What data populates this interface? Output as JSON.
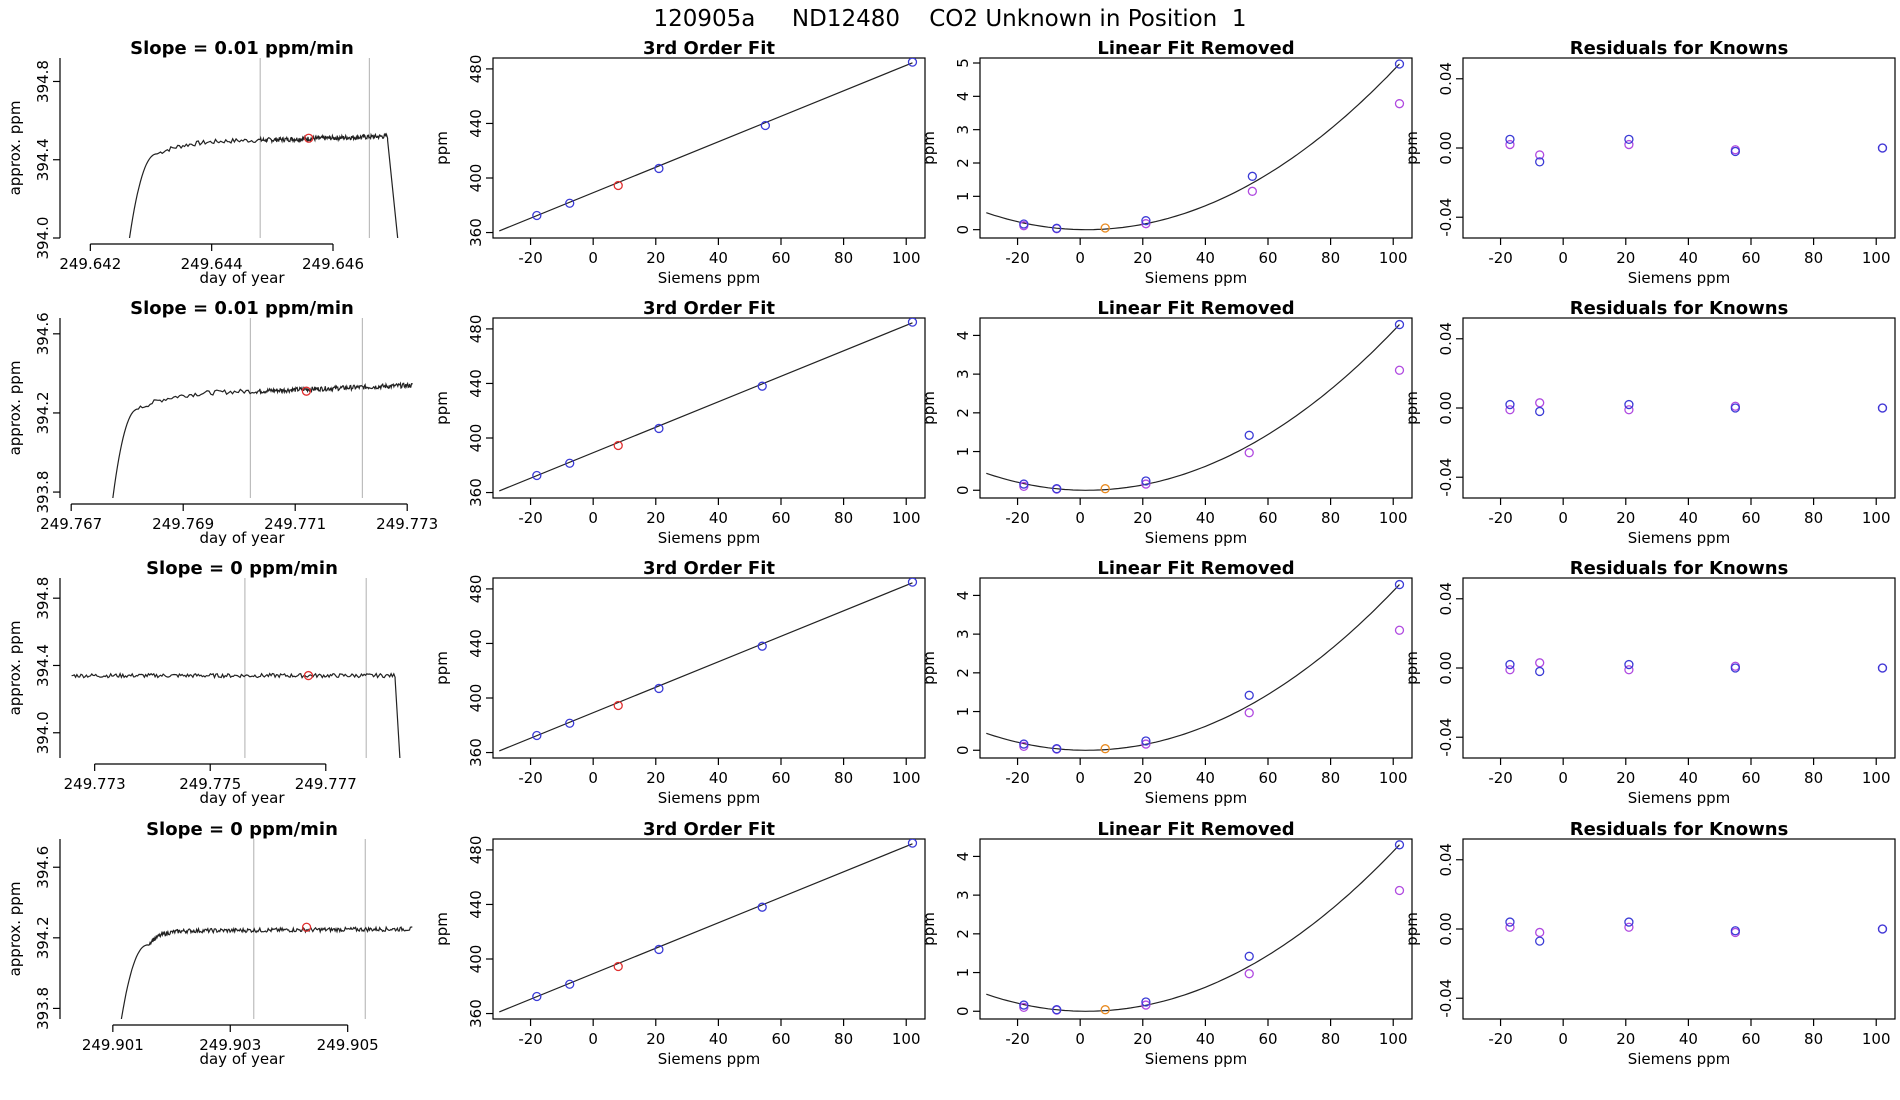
{
  "suptitle": "120905a     ND12480    CO2 Unknown in Position  1",
  "colors": {
    "known": "#3b3bd6",
    "known_alt": "#b04ae0",
    "unknown": "#e03030",
    "unknown_alt": "#e88a20",
    "vline": "#bdbdbd",
    "line": "#222222"
  },
  "chart_data": [
    {
      "row": 1,
      "panel": "timeseries",
      "type": "line",
      "title": "Slope =  0.01  ppm/min",
      "xlabel": "day of year",
      "ylabel": "approx. ppm",
      "xlim": [
        249.6415,
        249.6475
      ],
      "ylim": [
        394.0,
        394.92
      ],
      "xticks": [
        249.642,
        249.644,
        249.646
      ],
      "xtick_labels": [
        "249.642",
        "249.644",
        "249.646"
      ],
      "yticks": [
        394.0,
        394.4,
        394.8
      ],
      "ytick_labels": [
        "394.0",
        "394.4",
        "394.8"
      ],
      "rise": {
        "start_x": 249.6426,
        "end_x": 249.6431,
        "plateau_y": 394.43,
        "plateau_end_x": 249.6448,
        "plateau_end_y": 394.5
      },
      "level_end_x": 249.6469,
      "level_y": 394.52,
      "drop": {
        "start_x": 249.6469,
        "end_x": 249.6471
      },
      "noise": 0.012,
      "vlines": [
        249.6448,
        249.6466
      ],
      "marker": {
        "x": 249.6456,
        "y": 394.51
      }
    },
    {
      "row": 1,
      "panel": "fit",
      "type": "scatter",
      "title": "3rd Order Fit",
      "xlabel": "Siemens ppm",
      "ylabel": "ppm",
      "xlim": [
        -32,
        106
      ],
      "ylim": [
        356,
        488
      ],
      "xticks": [
        -20,
        0,
        20,
        40,
        60,
        80,
        100
      ],
      "xtick_labels": [
        "-20",
        "0",
        "20",
        "40",
        "60",
        "80",
        "100"
      ],
      "yticks": [
        360,
        400,
        440,
        480
      ],
      "ytick_labels": [
        "360",
        "400",
        "440",
        "480"
      ],
      "line": {
        "x0": -30,
        "y0": 361.2,
        "x1": 102,
        "y1": 484.5
      },
      "knowns": [
        [
          -18,
          372.5
        ],
        [
          -7.5,
          381.5
        ],
        [
          21,
          407
        ],
        [
          55,
          438.5
        ],
        [
          102,
          485
        ]
      ],
      "unknown": [
        8,
        394.5
      ]
    },
    {
      "row": 1,
      "panel": "linear_removed",
      "type": "scatter",
      "title": "Linear Fit Removed",
      "xlabel": "Siemens ppm",
      "ylabel": "ppm",
      "xlim": [
        -32,
        106
      ],
      "ylim": [
        -0.25,
        5.15
      ],
      "xticks": [
        -20,
        0,
        20,
        40,
        60,
        80,
        100
      ],
      "xtick_labels": [
        "-20",
        "0",
        "20",
        "40",
        "60",
        "80",
        "100"
      ],
      "yticks": [
        0,
        1,
        2,
        3,
        4,
        5
      ],
      "ytick_labels": [
        "0",
        "1",
        "2",
        "3",
        "4",
        "5"
      ],
      "curve": {
        "x_start": -30,
        "x_end": 102,
        "peak_at_end": 4.97,
        "value_at_start": 0.52
      },
      "knowns": [
        [
          -18,
          0.17
        ],
        [
          -7.5,
          0.04
        ],
        [
          21,
          0.27
        ],
        [
          55,
          1.6
        ],
        [
          102,
          4.97
        ]
      ],
      "knowns_alt": [
        [
          -18,
          0.12
        ],
        [
          -7.5,
          0.03
        ],
        [
          21,
          0.18
        ],
        [
          55,
          1.15
        ],
        [
          102,
          3.78
        ]
      ],
      "unknown": [
        8,
        0.05
      ]
    },
    {
      "row": 1,
      "panel": "residuals",
      "type": "scatter",
      "title": "Residuals for Knowns",
      "xlabel": "Siemens ppm",
      "ylabel": "ppm",
      "xlim": [
        -32,
        106
      ],
      "ylim": [
        -0.052,
        0.052
      ],
      "xticks": [
        -20,
        0,
        20,
        40,
        60,
        80,
        100
      ],
      "xtick_labels": [
        "-20",
        "0",
        "20",
        "40",
        "60",
        "80",
        "100"
      ],
      "yticks": [
        -0.04,
        0.0,
        0.04
      ],
      "ytick_labels": [
        "-0.04",
        "0.00",
        "0.04"
      ],
      "knowns": [
        [
          -17,
          0.005
        ],
        [
          -7.5,
          -0.008
        ],
        [
          21,
          0.005
        ],
        [
          55,
          -0.002
        ],
        [
          102,
          0.0
        ]
      ],
      "knowns_alt": [
        [
          -17,
          0.002
        ],
        [
          -7.5,
          -0.004
        ],
        [
          21,
          0.002
        ],
        [
          55,
          -0.001
        ],
        [
          102,
          0.0
        ]
      ]
    },
    {
      "row": 2,
      "panel": "timeseries",
      "type": "line",
      "title": "Slope =  0.01  ppm/min",
      "xlabel": "day of year",
      "ylabel": "approx. ppm",
      "xlim": [
        249.7668,
        249.7733
      ],
      "ylim": [
        393.77,
        394.68
      ],
      "xticks": [
        249.767,
        249.769,
        249.771,
        249.773
      ],
      "xtick_labels": [
        "249.767",
        "249.769",
        "249.771",
        "249.773"
      ],
      "yticks": [
        393.8,
        394.2,
        394.6
      ],
      "ytick_labels": [
        "393.8",
        "394.2",
        "394.6"
      ],
      "rise": {
        "start_x": 249.7677,
        "end_x": 249.7682,
        "plateau_y": 394.22,
        "plateau_end_x": 249.7703,
        "plateau_end_y": 394.31
      },
      "level_end_x": 249.7731,
      "level_y": 394.34,
      "drop": null,
      "noise": 0.012,
      "vlines": [
        249.7702,
        249.7722
      ],
      "marker": {
        "x": 249.7712,
        "y": 394.31
      }
    },
    {
      "row": 2,
      "panel": "fit",
      "type": "scatter",
      "title": "3rd Order Fit",
      "xlabel": "Siemens ppm",
      "ylabel": "ppm",
      "xlim": [
        -32,
        106
      ],
      "ylim": [
        356,
        488
      ],
      "xticks": [
        -20,
        0,
        20,
        40,
        60,
        80,
        100
      ],
      "xtick_labels": [
        "-20",
        "0",
        "20",
        "40",
        "60",
        "80",
        "100"
      ],
      "yticks": [
        360,
        400,
        440,
        480
      ],
      "ytick_labels": [
        "360",
        "400",
        "440",
        "480"
      ],
      "line": {
        "x0": -30,
        "y0": 361.2,
        "x1": 102,
        "y1": 484.5
      },
      "knowns": [
        [
          -18,
          372.5
        ],
        [
          -7.5,
          381.5
        ],
        [
          21,
          407
        ],
        [
          54,
          438
        ],
        [
          102,
          485
        ]
      ],
      "unknown": [
        8,
        394.5
      ]
    },
    {
      "row": 2,
      "panel": "linear_removed",
      "type": "scatter",
      "title": "Linear Fit Removed",
      "xlabel": "Siemens ppm",
      "ylabel": "ppm",
      "xlim": [
        -32,
        106
      ],
      "ylim": [
        -0.2,
        4.45
      ],
      "xticks": [
        -20,
        0,
        20,
        40,
        60,
        80,
        100
      ],
      "xtick_labels": [
        "-20",
        "0",
        "20",
        "40",
        "60",
        "80",
        "100"
      ],
      "yticks": [
        0,
        1,
        2,
        3,
        4
      ],
      "ytick_labels": [
        "0",
        "1",
        "2",
        "3",
        "4"
      ],
      "curve": {
        "x_start": -30,
        "x_end": 102,
        "peak_at_end": 4.28,
        "value_at_start": 0.5
      },
      "knowns": [
        [
          -18,
          0.16
        ],
        [
          -7.5,
          0.04
        ],
        [
          21,
          0.24
        ],
        [
          54,
          1.42
        ],
        [
          102,
          4.28
        ]
      ],
      "knowns_alt": [
        [
          -18,
          0.1
        ],
        [
          -7.5,
          0.03
        ],
        [
          21,
          0.16
        ],
        [
          54,
          0.97
        ],
        [
          102,
          3.1
        ]
      ],
      "unknown": [
        8,
        0.04
      ]
    },
    {
      "row": 2,
      "panel": "residuals",
      "type": "scatter",
      "title": "Residuals for Knowns",
      "xlabel": "Siemens ppm",
      "ylabel": "ppm",
      "xlim": [
        -32,
        106
      ],
      "ylim": [
        -0.052,
        0.052
      ],
      "xticks": [
        -20,
        0,
        20,
        40,
        60,
        80,
        100
      ],
      "xtick_labels": [
        "-20",
        "0",
        "20",
        "40",
        "60",
        "80",
        "100"
      ],
      "yticks": [
        -0.04,
        0.0,
        0.04
      ],
      "ytick_labels": [
        "-0.04",
        "0.00",
        "0.04"
      ],
      "knowns": [
        [
          -17,
          0.002
        ],
        [
          -7.5,
          -0.002
        ],
        [
          21,
          0.002
        ],
        [
          55,
          0.0
        ],
        [
          102,
          0.0
        ]
      ],
      "knowns_alt": [
        [
          -17,
          -0.001
        ],
        [
          -7.5,
          0.003
        ],
        [
          21,
          -0.001
        ],
        [
          55,
          0.001
        ],
        [
          102,
          0.0
        ]
      ]
    },
    {
      "row": 3,
      "panel": "timeseries",
      "type": "line",
      "title": "Slope =  0  ppm/min",
      "xlabel": "day of year",
      "ylabel": "approx. ppm",
      "xlim": [
        249.7724,
        249.7787
      ],
      "ylim": [
        393.85,
        394.92
      ],
      "xticks": [
        249.773,
        249.775,
        249.777
      ],
      "xtick_labels": [
        "249.773",
        "249.775",
        "249.777"
      ],
      "yticks": [
        394.0,
        394.4,
        394.8
      ],
      "ytick_labels": [
        "394.0",
        "394.4",
        "394.8"
      ],
      "rise": null,
      "level_start_x": 249.7726,
      "level_end_x": 249.7782,
      "level_y": 394.34,
      "drop": {
        "start_x": 249.7782,
        "end_x": 249.7783
      },
      "noise": 0.012,
      "vlines": [
        249.7756,
        249.7777
      ],
      "marker": {
        "x": 249.7767,
        "y": 394.34
      }
    },
    {
      "row": 3,
      "panel": "fit",
      "type": "scatter",
      "title": "3rd Order Fit",
      "xlabel": "Siemens ppm",
      "ylabel": "ppm",
      "xlim": [
        -32,
        106
      ],
      "ylim": [
        356,
        488
      ],
      "xticks": [
        -20,
        0,
        20,
        40,
        60,
        80,
        100
      ],
      "xtick_labels": [
        "-20",
        "0",
        "20",
        "40",
        "60",
        "80",
        "100"
      ],
      "yticks": [
        360,
        400,
        440,
        480
      ],
      "ytick_labels": [
        "360",
        "400",
        "440",
        "480"
      ],
      "line": {
        "x0": -30,
        "y0": 361.2,
        "x1": 102,
        "y1": 484.5
      },
      "knowns": [
        [
          -18,
          372.5
        ],
        [
          -7.5,
          381.5
        ],
        [
          21,
          407
        ],
        [
          54,
          438
        ],
        [
          102,
          485
        ]
      ],
      "unknown": [
        8,
        394.5
      ]
    },
    {
      "row": 3,
      "panel": "linear_removed",
      "type": "scatter",
      "title": "Linear Fit Removed",
      "xlabel": "Siemens ppm",
      "ylabel": "ppm",
      "xlim": [
        -32,
        106
      ],
      "ylim": [
        -0.2,
        4.45
      ],
      "xticks": [
        -20,
        0,
        20,
        40,
        60,
        80,
        100
      ],
      "xtick_labels": [
        "-20",
        "0",
        "20",
        "40",
        "60",
        "80",
        "100"
      ],
      "yticks": [
        0,
        1,
        2,
        3,
        4
      ],
      "ytick_labels": [
        "0",
        "1",
        "2",
        "3",
        "4"
      ],
      "curve": {
        "x_start": -30,
        "x_end": 102,
        "peak_at_end": 4.28,
        "value_at_start": 0.5
      },
      "knowns": [
        [
          -18,
          0.16
        ],
        [
          -7.5,
          0.04
        ],
        [
          21,
          0.24
        ],
        [
          54,
          1.42
        ],
        [
          102,
          4.28
        ]
      ],
      "knowns_alt": [
        [
          -18,
          0.1
        ],
        [
          -7.5,
          0.03
        ],
        [
          21,
          0.16
        ],
        [
          54,
          0.97
        ],
        [
          102,
          3.1
        ]
      ],
      "unknown": [
        8,
        0.04
      ]
    },
    {
      "row": 3,
      "panel": "residuals",
      "type": "scatter",
      "title": "Residuals for Knowns",
      "xlabel": "Siemens ppm",
      "ylabel": "ppm",
      "xlim": [
        -32,
        106
      ],
      "ylim": [
        -0.052,
        0.052
      ],
      "xticks": [
        -20,
        0,
        20,
        40,
        60,
        80,
        100
      ],
      "xtick_labels": [
        "-20",
        "0",
        "20",
        "40",
        "60",
        "80",
        "100"
      ],
      "yticks": [
        -0.04,
        0.0,
        0.04
      ],
      "ytick_labels": [
        "-0.04",
        "0.00",
        "0.04"
      ],
      "knowns": [
        [
          -17,
          0.002
        ],
        [
          -7.5,
          -0.002
        ],
        [
          21,
          0.002
        ],
        [
          55,
          0.0
        ],
        [
          102,
          0.0
        ]
      ],
      "knowns_alt": [
        [
          -17,
          -0.001
        ],
        [
          -7.5,
          0.003
        ],
        [
          21,
          -0.001
        ],
        [
          55,
          0.001
        ],
        [
          102,
          0.0
        ]
      ]
    },
    {
      "row": 4,
      "panel": "timeseries",
      "type": "line",
      "title": "Slope =  0  ppm/min",
      "xlabel": "day of year",
      "ylabel": "approx. ppm",
      "xlim": [
        249.9001,
        249.9063
      ],
      "ylim": [
        393.74,
        394.76
      ],
      "xticks": [
        249.901,
        249.903,
        249.905
      ],
      "xtick_labels": [
        "249.901",
        "249.903",
        "249.905"
      ],
      "yticks": [
        393.8,
        394.2,
        394.6
      ],
      "ytick_labels": [
        "393.8",
        "394.2",
        "394.6"
      ],
      "rise": {
        "start_x": 249.9011,
        "end_x": 249.9016,
        "plateau_y": 394.16,
        "plateau_end_x": 249.9023,
        "plateau_end_y": 394.24
      },
      "level_end_x": 249.9061,
      "level_y": 394.25,
      "drop": null,
      "noise": 0.012,
      "vlines": [
        249.9034,
        249.9053
      ],
      "marker": {
        "x": 249.9043,
        "y": 394.26
      }
    },
    {
      "row": 4,
      "panel": "fit",
      "type": "scatter",
      "title": "3rd Order Fit",
      "xlabel": "Siemens ppm",
      "ylabel": "ppm",
      "xlim": [
        -32,
        106
      ],
      "ylim": [
        356,
        488
      ],
      "xticks": [
        -20,
        0,
        20,
        40,
        60,
        80,
        100
      ],
      "xtick_labels": [
        "-20",
        "0",
        "20",
        "40",
        "60",
        "80",
        "100"
      ],
      "yticks": [
        360,
        400,
        440,
        480
      ],
      "ytick_labels": [
        "360",
        "400",
        "440",
        "480"
      ],
      "line": {
        "x0": -30,
        "y0": 361.2,
        "x1": 102,
        "y1": 484.5
      },
      "knowns": [
        [
          -18,
          372.5
        ],
        [
          -7.5,
          381.5
        ],
        [
          21,
          407
        ],
        [
          54,
          438
        ],
        [
          102,
          485
        ]
      ],
      "unknown": [
        8,
        394.5
      ]
    },
    {
      "row": 4,
      "panel": "linear_removed",
      "type": "scatter",
      "title": "Linear Fit Removed",
      "xlabel": "Siemens ppm",
      "ylabel": "ppm",
      "xlim": [
        -32,
        106
      ],
      "ylim": [
        -0.2,
        4.45
      ],
      "xticks": [
        -20,
        0,
        20,
        40,
        60,
        80,
        100
      ],
      "xtick_labels": [
        "-20",
        "0",
        "20",
        "40",
        "60",
        "80",
        "100"
      ],
      "yticks": [
        0,
        1,
        2,
        3,
        4
      ],
      "ytick_labels": [
        "0",
        "1",
        "2",
        "3",
        "4"
      ],
      "curve": {
        "x_start": -30,
        "x_end": 102,
        "peak_at_end": 4.3,
        "value_at_start": 0.5
      },
      "knowns": [
        [
          -18,
          0.16
        ],
        [
          -7.5,
          0.04
        ],
        [
          21,
          0.24
        ],
        [
          54,
          1.42
        ],
        [
          102,
          4.3
        ]
      ],
      "knowns_alt": [
        [
          -18,
          0.1
        ],
        [
          -7.5,
          0.03
        ],
        [
          21,
          0.16
        ],
        [
          54,
          0.97
        ],
        [
          102,
          3.12
        ]
      ],
      "unknown": [
        8,
        0.04
      ]
    },
    {
      "row": 4,
      "panel": "residuals",
      "type": "scatter",
      "title": "Residuals for Knowns",
      "xlabel": "Siemens ppm",
      "ylabel": "ppm",
      "xlim": [
        -32,
        106
      ],
      "ylim": [
        -0.052,
        0.052
      ],
      "xticks": [
        -20,
        0,
        20,
        40,
        60,
        80,
        100
      ],
      "xtick_labels": [
        "-20",
        "0",
        "20",
        "40",
        "60",
        "80",
        "100"
      ],
      "yticks": [
        -0.04,
        0.0,
        0.04
      ],
      "ytick_labels": [
        "-0.04",
        "0.00",
        "0.04"
      ],
      "knowns": [
        [
          -17,
          0.004
        ],
        [
          -7.5,
          -0.007
        ],
        [
          21,
          0.004
        ],
        [
          55,
          -0.001
        ],
        [
          102,
          0.0
        ]
      ],
      "knowns_alt": [
        [
          -17,
          0.001
        ],
        [
          -7.5,
          -0.002
        ],
        [
          21,
          0.001
        ],
        [
          55,
          -0.002
        ],
        [
          102,
          0.0
        ]
      ]
    }
  ]
}
